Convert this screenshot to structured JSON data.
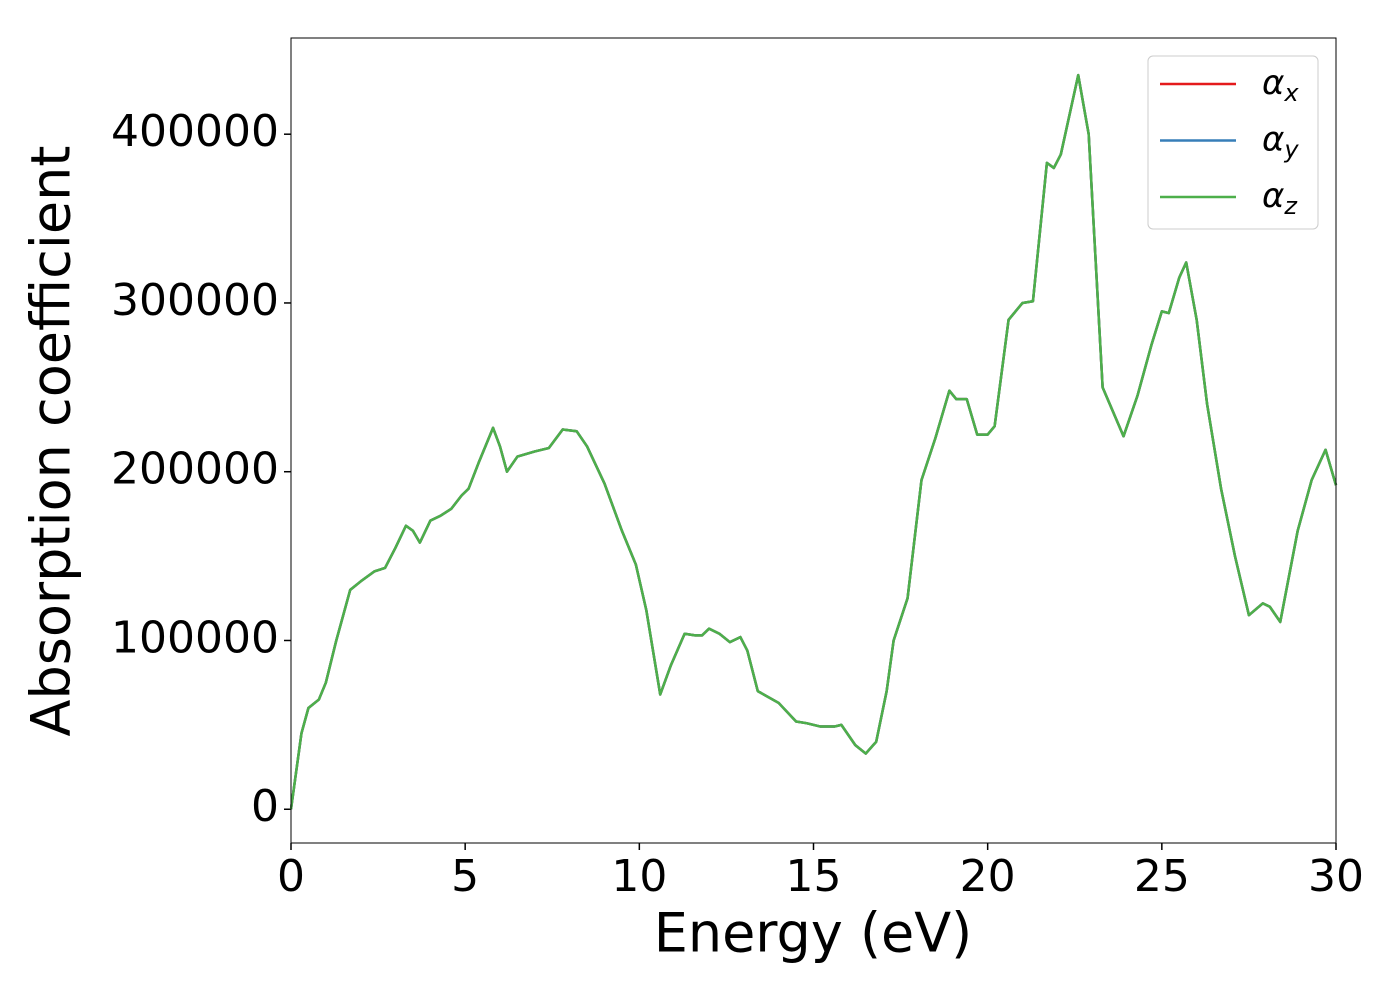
{
  "chart_data": {
    "type": "line",
    "xlabel": "Energy (eV)",
    "ylabel": "Absorption coefficient",
    "x": [
      0,
      0.1,
      0.3,
      0.5,
      0.8,
      1.0,
      1.3,
      1.7,
      2.0,
      2.4,
      2.7,
      3.0,
      3.3,
      3.5,
      3.7,
      4.0,
      4.3,
      4.6,
      4.9,
      5.1,
      5.4,
      5.8,
      6.0,
      6.2,
      6.5,
      7.0,
      7.4,
      7.8,
      8.2,
      8.5,
      9.0,
      9.5,
      9.9,
      10.2,
      10.6,
      10.9,
      11.3,
      11.6,
      11.8,
      12.0,
      12.3,
      12.6,
      12.9,
      13.1,
      13.4,
      14.0,
      14.5,
      14.8,
      15.2,
      15.6,
      15.8,
      16.2,
      16.5,
      16.8,
      17.1,
      17.3,
      17.7,
      18.1,
      18.5,
      18.9,
      19.1,
      19.4,
      19.7,
      20.0,
      20.2,
      20.6,
      21.0,
      21.3,
      21.7,
      21.9,
      22.1,
      22.6,
      22.9,
      23.3,
      23.9,
      24.3,
      24.7,
      25.0,
      25.2,
      25.5,
      25.7,
      26.0,
      26.3,
      26.7,
      27.1,
      27.5,
      27.9,
      28.1,
      28.4,
      28.9,
      29.3,
      29.7,
      30.0
    ],
    "series": [
      {
        "name": "αx",
        "color": "#e41a1c",
        "values": [
          0,
          15000,
          45000,
          60000,
          65000,
          75000,
          100000,
          130000,
          135000,
          141000,
          143000,
          155000,
          168000,
          165000,
          158000,
          171000,
          174000,
          178000,
          186000,
          190000,
          206000,
          226000,
          215000,
          200000,
          209000,
          212000,
          214000,
          225000,
          224000,
          215000,
          193000,
          165000,
          145000,
          118000,
          68000,
          85000,
          104000,
          103000,
          103000,
          107000,
          104000,
          99000,
          102000,
          94000,
          70000,
          63000,
          52000,
          51000,
          49000,
          49000,
          50000,
          38000,
          33000,
          40000,
          70000,
          100000,
          125000,
          195000,
          220000,
          248000,
          243000,
          243000,
          222000,
          222000,
          227000,
          290000,
          300000,
          301000,
          383000,
          380000,
          388000,
          435000,
          400000,
          250000,
          221000,
          245000,
          275000,
          295000,
          294000,
          315000,
          324000,
          290000,
          240000,
          190000,
          150000,
          115000,
          122000,
          120000,
          111000,
          165000,
          195000,
          213000,
          192000
        ]
      },
      {
        "name": "αy",
        "color": "#377eb8",
        "values": [
          0,
          15000,
          45000,
          60000,
          65000,
          75000,
          100000,
          130000,
          135000,
          141000,
          143000,
          155000,
          168000,
          165000,
          158000,
          171000,
          174000,
          178000,
          186000,
          190000,
          206000,
          226000,
          215000,
          200000,
          209000,
          212000,
          214000,
          225000,
          224000,
          215000,
          193000,
          165000,
          145000,
          118000,
          68000,
          85000,
          104000,
          103000,
          103000,
          107000,
          104000,
          99000,
          102000,
          94000,
          70000,
          63000,
          52000,
          51000,
          49000,
          49000,
          50000,
          38000,
          33000,
          40000,
          70000,
          100000,
          125000,
          195000,
          220000,
          248000,
          243000,
          243000,
          222000,
          222000,
          227000,
          290000,
          300000,
          301000,
          383000,
          380000,
          388000,
          435000,
          400000,
          250000,
          221000,
          245000,
          275000,
          295000,
          294000,
          315000,
          324000,
          290000,
          240000,
          190000,
          150000,
          115000,
          122000,
          120000,
          111000,
          165000,
          195000,
          213000,
          192000
        ]
      },
      {
        "name": "αz",
        "color": "#4daf4a",
        "values": [
          0,
          15000,
          45000,
          60000,
          65000,
          75000,
          100000,
          130000,
          135000,
          141000,
          143000,
          155000,
          168000,
          165000,
          158000,
          171000,
          174000,
          178000,
          186000,
          190000,
          206000,
          226000,
          215000,
          200000,
          209000,
          212000,
          214000,
          225000,
          224000,
          215000,
          193000,
          165000,
          145000,
          118000,
          68000,
          85000,
          104000,
          103000,
          103000,
          107000,
          104000,
          99000,
          102000,
          94000,
          70000,
          63000,
          52000,
          51000,
          49000,
          49000,
          50000,
          38000,
          33000,
          40000,
          70000,
          100000,
          125000,
          195000,
          220000,
          248000,
          243000,
          243000,
          222000,
          222000,
          227000,
          290000,
          300000,
          301000,
          383000,
          380000,
          388000,
          435000,
          400000,
          250000,
          221000,
          245000,
          275000,
          295000,
          294000,
          315000,
          324000,
          290000,
          240000,
          190000,
          150000,
          115000,
          122000,
          120000,
          111000,
          165000,
          195000,
          213000,
          192000
        ]
      }
    ],
    "xlim": [
      0,
      30
    ],
    "xticks": [
      0,
      5,
      10,
      15,
      20,
      25,
      30
    ],
    "ylim": [
      -20000,
      457000
    ],
    "yticks": [
      0,
      100000,
      200000,
      300000,
      400000
    ],
    "legend": "upper right",
    "grid": false
  }
}
